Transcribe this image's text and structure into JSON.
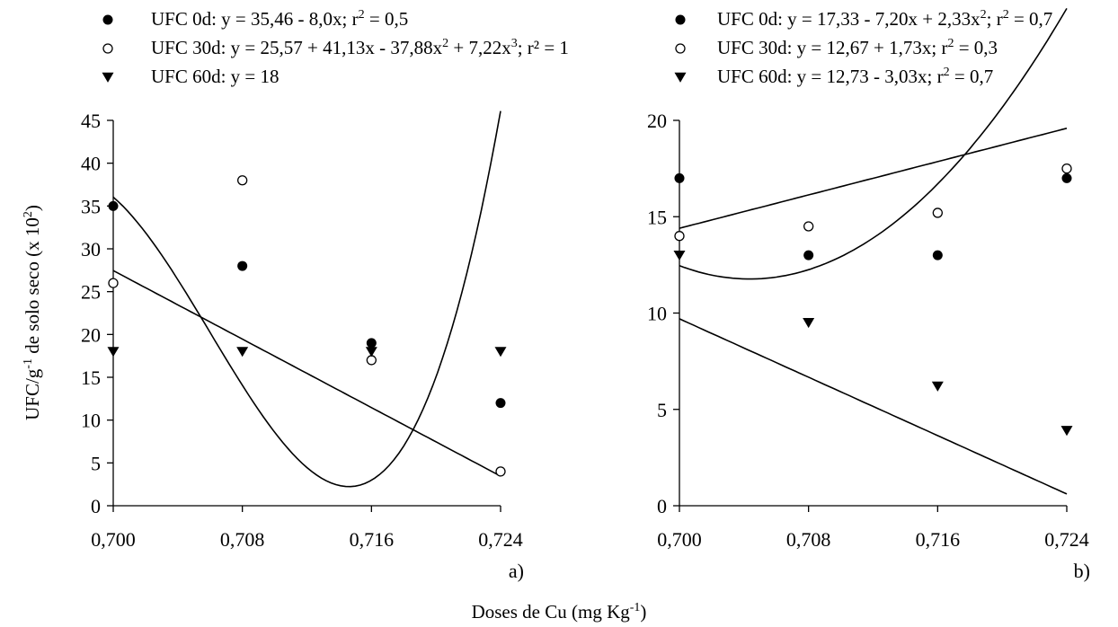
{
  "figure": {
    "xlabel": "Doses de Cu (mg Kg",
    "xlabel_sup": "-1",
    "xlabel_close": ")"
  },
  "chart_data": [
    {
      "type": "scatter",
      "panel_label": "a)",
      "ylabel": "UFC/g",
      "ylabel_sup1": "-1",
      "ylabel_mid": " de solo seco (x 10",
      "ylabel_sup2": "2",
      "ylabel_close": ")",
      "ylim": [
        0,
        45
      ],
      "y_ticks": [
        0,
        5,
        10,
        15,
        20,
        25,
        30,
        35,
        40,
        45
      ],
      "x_ticks": [
        0.7,
        0.708,
        0.716,
        0.724
      ],
      "x_tick_labels": [
        "0,700",
        "0,708",
        "0,716",
        "0,724"
      ],
      "legend_position": "top-left",
      "series": [
        {
          "marker": "filled-circle",
          "legend_parts": [
            "UFC 0d: y = 35,46 - 8,0x; r",
            "2",
            " = 0,5"
          ],
          "x": [
            0.7,
            0.708,
            0.716,
            0.724
          ],
          "y": [
            35,
            28,
            19,
            12
          ],
          "fit": {
            "kind": "poly",
            "coef": [
              35.46,
              -8.0
            ],
            "label": "y = 35,46 - 8,0x"
          }
        },
        {
          "marker": "open-circle",
          "legend_parts": [
            "UFC 30d: y = 25,57 + 41,13x - 37,88x",
            "2",
            " + 7,22x",
            "3",
            "; r² = 1"
          ],
          "x": [
            0.7,
            0.708,
            0.716,
            0.724
          ],
          "y": [
            26,
            38,
            17,
            4
          ],
          "fit": {
            "kind": "poly",
            "coef": [
              25.57,
              41.13,
              -37.88,
              7.22
            ],
            "label": "y = 25,57 + 41,13x - 37,88x² + 7,22x³"
          }
        },
        {
          "marker": "filled-triangle-down",
          "legend_parts": [
            "UFC 60d: y = 18"
          ],
          "x": [
            0.7,
            0.708,
            0.716,
            0.724
          ],
          "y": [
            18,
            18,
            18,
            18
          ],
          "fit": null
        }
      ]
    },
    {
      "type": "scatter",
      "panel_label": "b)",
      "ylim": [
        0,
        20
      ],
      "y_ticks": [
        0,
        5,
        10,
        15,
        20
      ],
      "x_ticks": [
        0.7,
        0.708,
        0.716,
        0.724
      ],
      "x_tick_labels": [
        "0,700",
        "0,708",
        "0,716",
        "0,724"
      ],
      "legend_position": "top-right",
      "series": [
        {
          "marker": "filled-circle",
          "legend_parts": [
            "UFC 0d: y = 17,33 - 7,20x + 2,33x",
            "2",
            "; r",
            "2",
            " = 0,7"
          ],
          "x": [
            0.7,
            0.708,
            0.716,
            0.724
          ],
          "y": [
            17,
            13,
            13,
            17
          ],
          "fit": {
            "kind": "poly",
            "coef": [
              17.33,
              -7.2,
              2.33
            ],
            "label": "y = 17,33 - 7,20x + 2,33x²"
          }
        },
        {
          "marker": "open-circle",
          "legend_parts": [
            "UFC 30d: y = 12,67 + 1,73x; r",
            "2",
            " = 0,3"
          ],
          "x": [
            0.7,
            0.708,
            0.716,
            0.724
          ],
          "y": [
            14,
            14.5,
            15.2,
            17.5
          ],
          "fit": {
            "kind": "poly",
            "coef": [
              12.67,
              1.73
            ],
            "label": "y = 12,67 + 1,73x"
          }
        },
        {
          "marker": "filled-triangle-down",
          "legend_parts": [
            "UFC 60d: y = 12,73 - 3,03x; r",
            "2",
            " = 0,7"
          ],
          "x": [
            0.7,
            0.708,
            0.716,
            0.724
          ],
          "y": [
            13,
            9.5,
            6.2,
            3.9
          ],
          "fit": {
            "kind": "poly",
            "coef": [
              12.73,
              -3.03
            ],
            "label": "y = 12,73 - 3,03x"
          }
        }
      ]
    }
  ]
}
